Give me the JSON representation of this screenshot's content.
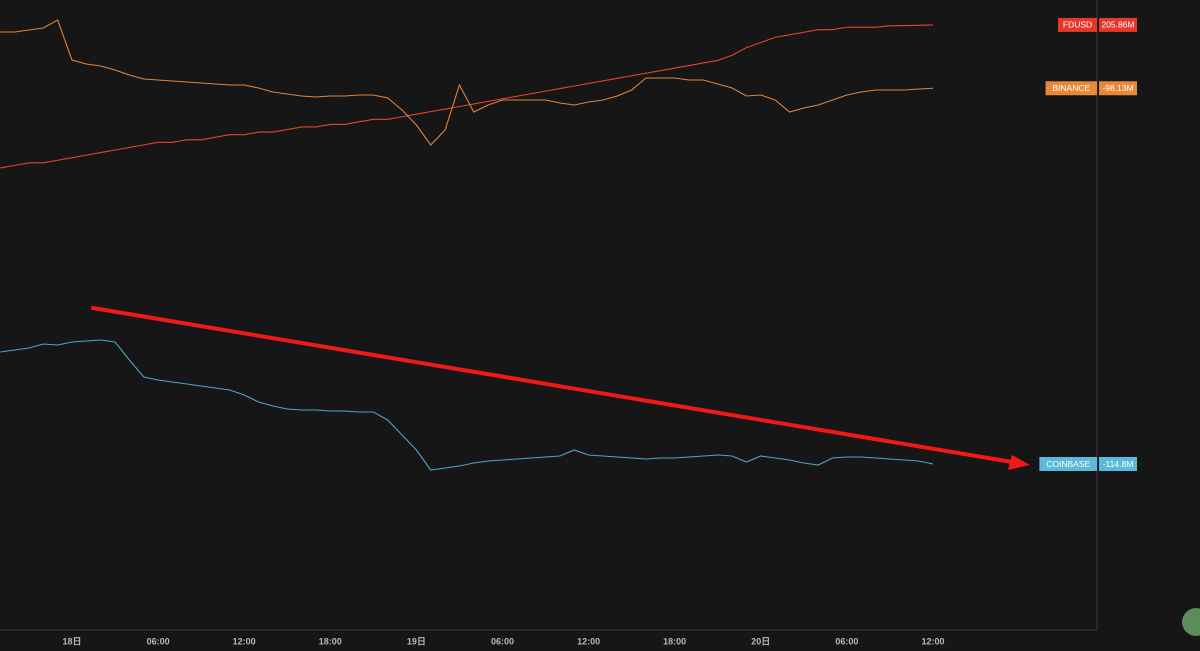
{
  "chart_data": {
    "type": "line",
    "categories": [
      null,
      null,
      null,
      null,
      null,
      "18日",
      null,
      null,
      null,
      null,
      null,
      "06:00",
      null,
      null,
      null,
      null,
      null,
      "12:00",
      null,
      null,
      null,
      null,
      null,
      "18:00",
      null,
      null,
      null,
      null,
      null,
      "19日",
      null,
      null,
      null,
      null,
      null,
      "06:00",
      null,
      null,
      null,
      null,
      null,
      "12:00",
      null,
      null,
      null,
      null,
      null,
      "18:00",
      null,
      null,
      null,
      null,
      null,
      "20日",
      null,
      null,
      null,
      null,
      null,
      "06:00",
      null,
      null,
      null,
      null,
      null,
      "12:00"
    ],
    "series": [
      {
        "name": "FDUSD",
        "color": "#e2452b",
        "label_color": "#e5372a",
        "ylim": [
          -30.5,
          215.6
        ],
        "values": [
          150,
          151,
          152,
          152,
          153,
          154,
          155,
          156,
          157,
          158,
          159,
          160,
          160,
          161,
          161,
          162,
          163,
          163,
          164,
          164,
          165,
          166,
          166,
          167,
          167,
          168,
          169,
          169,
          170,
          171,
          172,
          173,
          174,
          175,
          176,
          177,
          178,
          179,
          180,
          181,
          182,
          183,
          184,
          185,
          186,
          187,
          188,
          189,
          190,
          191,
          192,
          194,
          197,
          199,
          201,
          202,
          203,
          204,
          204,
          205,
          205,
          205,
          205.5,
          205.6,
          205.7,
          205.86
        ],
        "value_labels": [
          null,
          null,
          null,
          null,
          null,
          null,
          null,
          null,
          null,
          null,
          null,
          null,
          null,
          null,
          null,
          null,
          null,
          null,
          null,
          null,
          null,
          null,
          null,
          null,
          null,
          null,
          null,
          null,
          null,
          null,
          null,
          null,
          null,
          null,
          null,
          null,
          null,
          null,
          null,
          null,
          null,
          null,
          null,
          null,
          null,
          null,
          null,
          null,
          null,
          null,
          null,
          null,
          null,
          null,
          null,
          null,
          null,
          null,
          null,
          null,
          null,
          null,
          null,
          null,
          null,
          "205.86M"
        ]
      },
      {
        "name": "BINANCE",
        "color": "#e0843a",
        "label_color": "#e8893a",
        "ylim": [
          -369,
          -54
        ],
        "values": [
          -70,
          -70,
          -69,
          -68,
          -64,
          -84,
          -86,
          -87,
          -89,
          -91.5,
          -93.5,
          -94,
          -94.5,
          -95,
          -95.5,
          -96,
          -96.5,
          -96.5,
          -98,
          -100,
          -101,
          -102,
          -102.5,
          -102,
          -102,
          -101.5,
          -101.5,
          -103,
          -109,
          -116.5,
          -126.5,
          -119,
          -96.5,
          -110,
          -106.5,
          -104,
          -104,
          -104,
          -104,
          -105.5,
          -106.5,
          -105,
          -104,
          -102,
          -99,
          -93,
          -93,
          -93,
          -94,
          -94,
          -96,
          -98,
          -102,
          -101.5,
          -104,
          -110,
          -108,
          -106.5,
          -104,
          -101.5,
          -100,
          -99,
          -99,
          -99,
          -98.5,
          -98.13
        ],
        "value_labels": [
          null,
          null,
          null,
          null,
          null,
          null,
          null,
          null,
          null,
          null,
          null,
          null,
          null,
          null,
          null,
          null,
          null,
          null,
          null,
          null,
          null,
          null,
          null,
          null,
          null,
          null,
          null,
          null,
          null,
          null,
          null,
          null,
          null,
          null,
          null,
          null,
          null,
          null,
          null,
          null,
          null,
          null,
          null,
          null,
          null,
          null,
          null,
          null,
          null,
          null,
          null,
          null,
          null,
          null,
          null,
          null,
          null,
          null,
          null,
          null,
          null,
          null,
          null,
          null,
          null,
          "-98.13M"
        ]
      },
      {
        "name": "COINBASE",
        "color": "#4ba6c6",
        "label_color": "#5bb9d9",
        "ylim": [
          -148,
          -22
        ],
        "values": [
          -92.4,
          -92,
          -91.6,
          -90.8,
          -91,
          -90.4,
          -90.2,
          -90,
          -90.4,
          -94,
          -97.4,
          -98,
          -98.4,
          -98.8,
          -99.2,
          -99.6,
          -100,
          -101,
          -102.4,
          -103.2,
          -103.8,
          -104,
          -104,
          -104.2,
          -104.2,
          -104.4,
          -104.4,
          -106,
          -109,
          -112,
          -116,
          -115.6,
          -115.2,
          -114.6,
          -114.2,
          -114,
          -113.8,
          -113.6,
          -113.4,
          -113.2,
          -112,
          -113,
          -113.2,
          -113.4,
          -113.6,
          -113.8,
          -113.6,
          -113.6,
          -113.4,
          -113.2,
          -113,
          -113.2,
          -114.4,
          -113.2,
          -113.6,
          -114,
          -114.6,
          -115,
          -113.6,
          -113.4,
          -113.4,
          -113.6,
          -113.8,
          -114,
          -114.2,
          -114.8
        ],
        "value_labels": [
          null,
          null,
          null,
          null,
          null,
          null,
          null,
          null,
          null,
          null,
          null,
          null,
          null,
          null,
          null,
          null,
          null,
          null,
          null,
          null,
          null,
          null,
          null,
          null,
          null,
          null,
          null,
          null,
          null,
          null,
          null,
          null,
          null,
          null,
          null,
          null,
          null,
          null,
          null,
          null,
          null,
          null,
          null,
          null,
          null,
          null,
          null,
          null,
          null,
          null,
          null,
          null,
          null,
          null,
          null,
          null,
          null,
          null,
          null,
          null,
          null,
          null,
          null,
          null,
          null,
          "-114.8M"
        ]
      }
    ]
  }
}
